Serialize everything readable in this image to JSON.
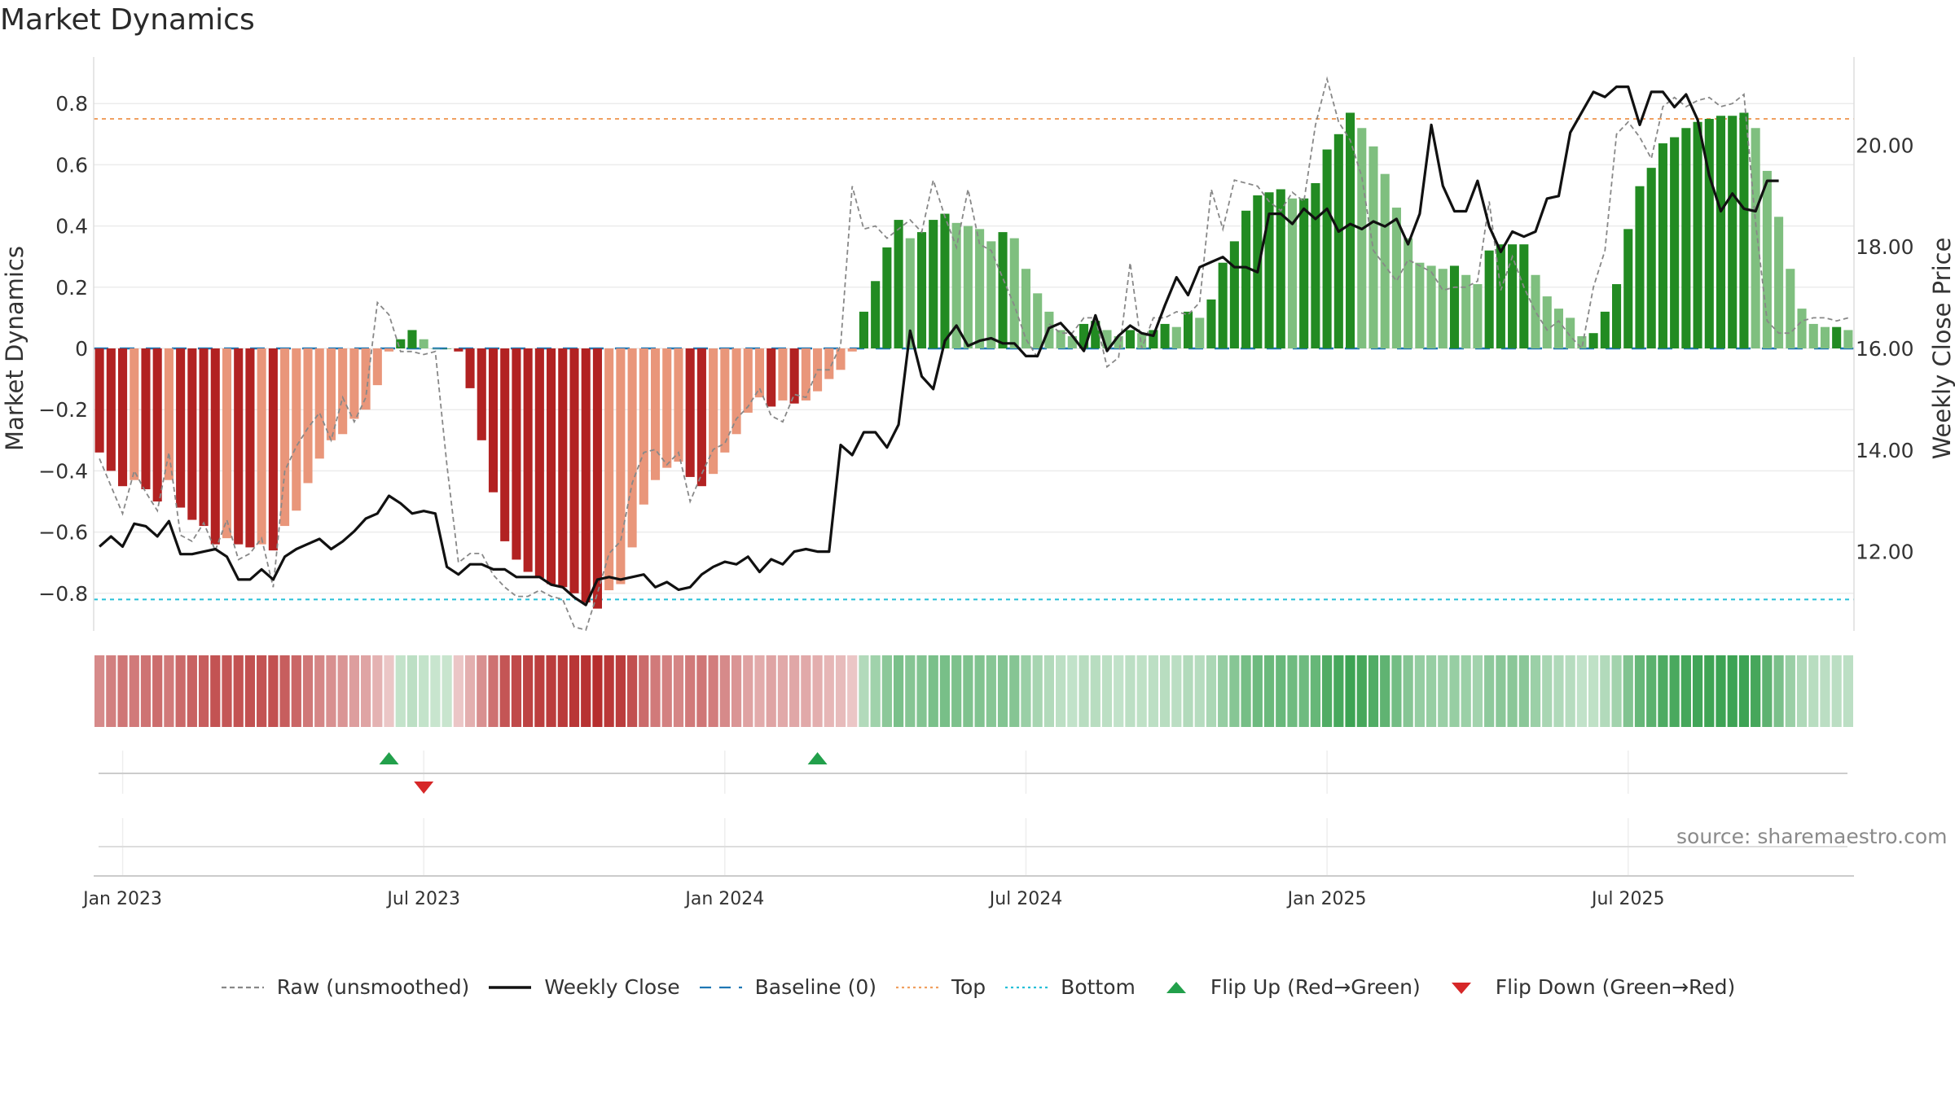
{
  "title": "Market Dynamics",
  "source": "source: sharemaestro.com",
  "legend": [
    {
      "label": "Raw (unsmoothed)",
      "kind": "dashed-line",
      "color": "#888888"
    },
    {
      "label": "Weekly Close",
      "kind": "line",
      "color": "#111111"
    },
    {
      "label": "Baseline (0)",
      "kind": "dashed-line",
      "color": "#1f77b4"
    },
    {
      "label": "Top",
      "kind": "dotted-line",
      "color": "#f0a060"
    },
    {
      "label": "Bottom",
      "kind": "dotted-line",
      "color": "#27c0d8"
    },
    {
      "label": "Flip Up (Red→Green)",
      "kind": "triangle-up",
      "color": "#22a04b"
    },
    {
      "label": "Flip Down (Green→Red)",
      "kind": "triangle-down",
      "color": "#d62728"
    }
  ],
  "chart_data": {
    "type": "bar",
    "title": "Market Dynamics",
    "ylabel": "Market Dynamics",
    "y2label": "Weekly Close Price",
    "ylim": [
      -0.92,
      0.93
    ],
    "y2lim": [
      10.46,
      21.87
    ],
    "yticks": [
      "0.8",
      "0.6",
      "0.4",
      "0.2",
      "0",
      "−0.2",
      "−0.4",
      "−0.6",
      "−0.8"
    ],
    "y2ticks": [
      "20.00",
      "18.00",
      "16.00",
      "14.00",
      "12.00"
    ],
    "x_start": "2022-12-19",
    "xticks": [
      {
        "label": "Jan 2023",
        "week": 2
      },
      {
        "label": "Jul 2023",
        "week": 28
      },
      {
        "label": "Jan 2024",
        "week": 54
      },
      {
        "label": "Jul 2024",
        "week": 80
      },
      {
        "label": "Jan 2025",
        "week": 106
      },
      {
        "label": "Jul 2025",
        "week": 132
      }
    ],
    "top_line": 0.75,
    "bottom_line": -0.82,
    "baseline": 0,
    "colors": {
      "dark_red": "#b22222",
      "light_red": "#e9967a",
      "dark_green": "#228b22",
      "light_green": "#7fbf7f",
      "raw": "#888888",
      "close": "#111111",
      "baseline": "#1f77b4",
      "top": "#f0a060",
      "bottom": "#27c0d8"
    },
    "series": [
      {
        "name": "Market Dynamics",
        "values": [
          -0.34,
          -0.4,
          -0.45,
          -0.43,
          -0.46,
          -0.5,
          -0.43,
          -0.52,
          -0.56,
          -0.58,
          -0.64,
          -0.62,
          -0.64,
          -0.65,
          -0.64,
          -0.66,
          -0.58,
          -0.53,
          -0.44,
          -0.36,
          -0.3,
          -0.28,
          -0.23,
          -0.2,
          -0.12,
          -0.01,
          0.03,
          0.06,
          0.03,
          0.0,
          0.0,
          -0.01,
          -0.13,
          -0.3,
          -0.47,
          -0.63,
          -0.69,
          -0.73,
          -0.75,
          -0.77,
          -0.78,
          -0.8,
          -0.83,
          -0.85,
          -0.79,
          -0.77,
          -0.65,
          -0.51,
          -0.43,
          -0.39,
          -0.37,
          -0.42,
          -0.45,
          -0.41,
          -0.34,
          -0.28,
          -0.21,
          -0.16,
          -0.19,
          -0.17,
          -0.18,
          -0.17,
          -0.14,
          -0.1,
          -0.07,
          -0.01,
          0.12,
          0.22,
          0.33,
          0.42,
          0.36,
          0.38,
          0.42,
          0.44,
          0.41,
          0.4,
          0.39,
          0.35,
          0.38,
          0.36,
          0.26,
          0.18,
          0.12,
          0.06,
          0.04,
          0.08,
          0.09,
          0.06,
          0.04,
          0.06,
          0.05,
          0.06,
          0.08,
          0.07,
          0.12,
          0.1,
          0.16,
          0.28,
          0.35,
          0.45,
          0.5,
          0.51,
          0.52,
          0.49,
          0.49,
          0.54,
          0.65,
          0.7,
          0.77,
          0.72,
          0.66,
          0.57,
          0.46,
          0.36,
          0.28,
          0.27,
          0.26,
          0.27,
          0.24,
          0.21,
          0.32,
          0.34,
          0.34,
          0.34,
          0.24,
          0.17,
          0.13,
          0.1,
          0.04,
          0.05,
          0.12,
          0.21,
          0.39,
          0.53,
          0.59,
          0.67,
          0.69,
          0.72,
          0.74,
          0.75,
          0.76,
          0.76,
          0.77,
          0.72,
          0.58,
          0.43,
          0.26,
          0.13,
          0.08,
          0.07,
          0.07,
          0.06
        ]
      },
      {
        "name": "Raw (unsmoothed)",
        "values": [
          -0.36,
          -0.45,
          -0.54,
          -0.4,
          -0.47,
          -0.53,
          -0.34,
          -0.61,
          -0.63,
          -0.57,
          -0.66,
          -0.56,
          -0.69,
          -0.67,
          -0.62,
          -0.78,
          -0.4,
          -0.32,
          -0.26,
          -0.21,
          -0.3,
          -0.16,
          -0.24,
          -0.16,
          0.15,
          0.11,
          -0.01,
          -0.01,
          -0.02,
          -0.01,
          -0.38,
          -0.7,
          -0.67,
          -0.67,
          -0.74,
          -0.78,
          -0.81,
          -0.81,
          -0.79,
          -0.81,
          -0.82,
          -0.91,
          -0.92,
          -0.8,
          -0.67,
          -0.63,
          -0.44,
          -0.34,
          -0.33,
          -0.38,
          -0.34,
          -0.5,
          -0.41,
          -0.33,
          -0.31,
          -0.23,
          -0.19,
          -0.13,
          -0.22,
          -0.24,
          -0.15,
          -0.16,
          -0.07,
          -0.07,
          0.01,
          0.53,
          0.39,
          0.4,
          0.36,
          0.39,
          0.42,
          0.38,
          0.55,
          0.43,
          0.33,
          0.52,
          0.34,
          0.32,
          0.23,
          0.14,
          0.03,
          -0.03,
          0.08,
          0.05,
          0.05,
          0.1,
          0.1,
          -0.06,
          -0.03,
          0.28,
          0.0,
          0.1,
          0.1,
          0.12,
          0.11,
          0.15,
          0.52,
          0.39,
          0.55,
          0.54,
          0.53,
          0.48,
          0.45,
          0.51,
          0.48,
          0.73,
          0.88,
          0.74,
          0.68,
          0.56,
          0.32,
          0.27,
          0.22,
          0.29,
          0.27,
          0.25,
          0.19,
          0.2,
          0.2,
          0.22,
          0.48,
          0.19,
          0.3,
          0.2,
          0.12,
          0.06,
          0.09,
          0.04,
          0.0,
          0.2,
          0.32,
          0.7,
          0.74,
          0.69,
          0.62,
          0.79,
          0.82,
          0.79,
          0.81,
          0.82,
          0.79,
          0.8,
          0.83,
          0.41,
          0.09,
          0.05,
          0.05,
          0.09,
          0.1,
          0.1,
          0.09,
          0.1
        ]
      },
      {
        "name": "Weekly Close",
        "values": [
          12.1,
          12.3,
          12.1,
          12.55,
          12.5,
          12.3,
          12.6,
          11.95,
          11.95,
          12.0,
          12.05,
          11.9,
          11.45,
          11.45,
          11.65,
          11.45,
          11.9,
          12.05,
          12.15,
          12.25,
          12.05,
          12.2,
          12.4,
          12.65,
          12.75,
          13.1,
          12.95,
          12.75,
          12.8,
          12.75,
          11.7,
          11.55,
          11.75,
          11.75,
          11.65,
          11.65,
          11.5,
          11.5,
          11.5,
          11.35,
          11.3,
          11.1,
          10.95,
          11.45,
          11.5,
          11.45,
          11.5,
          11.55,
          11.3,
          11.4,
          11.25,
          11.3,
          11.55,
          11.7,
          11.8,
          11.75,
          11.9,
          11.6,
          11.85,
          11.75,
          12.0,
          12.05,
          12.0,
          12.0,
          14.1,
          13.9,
          14.35,
          14.35,
          14.05,
          14.5,
          16.35,
          15.45,
          15.2,
          16.15,
          16.45,
          16.05,
          16.15,
          16.2,
          16.1,
          16.1,
          15.85,
          15.85,
          16.4,
          16.5,
          16.25,
          15.95,
          16.65,
          15.95,
          16.25,
          16.45,
          16.3,
          16.25,
          16.85,
          17.4,
          17.05,
          17.6,
          17.7,
          17.8,
          17.6,
          17.6,
          17.5,
          18.65,
          18.65,
          18.45,
          18.75,
          18.55,
          18.75,
          18.3,
          18.45,
          18.35,
          18.5,
          18.4,
          18.55,
          18.05,
          18.65,
          20.4,
          19.2,
          18.7,
          18.7,
          19.3,
          18.4,
          17.9,
          18.3,
          18.2,
          18.3,
          18.95,
          19.0,
          20.25,
          20.65,
          21.05,
          20.95,
          21.15,
          21.15,
          20.4,
          21.05,
          21.05,
          20.75,
          21.0,
          20.5,
          19.4,
          18.7,
          19.05,
          18.75,
          18.7,
          19.3,
          19.3
        ]
      }
    ],
    "flip_up_weeks": [
      25,
      62
    ],
    "flip_down_weeks": [
      28
    ]
  }
}
